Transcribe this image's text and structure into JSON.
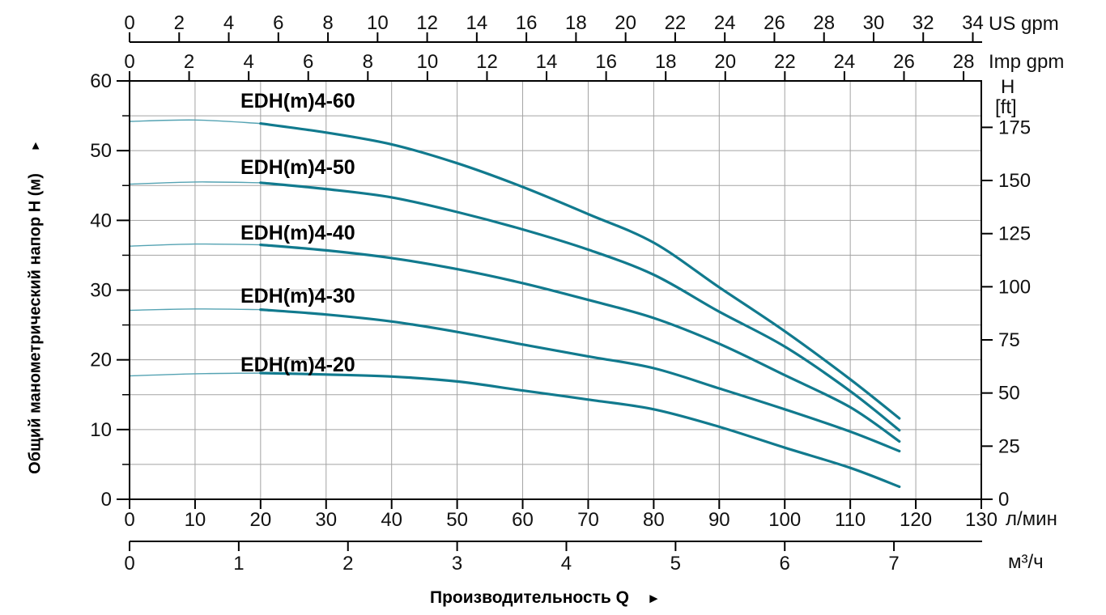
{
  "labels": {
    "us_gpm": "US gpm",
    "imp_gpm": "Imp gpm",
    "right_axis_line1": "H",
    "right_axis_line2": "[ft]",
    "flow_lmin": "л/мин",
    "flow_m3h": "м³/ч",
    "y_title": "Общий манометрический напор Н (м)",
    "y_arrow": "▲",
    "x_title": "Производительность Q",
    "x_arrow": "►"
  },
  "chart_data": {
    "type": "line",
    "title": "",
    "x_axes": [
      {
        "id": "us_gpm",
        "unit": "US gpm",
        "lmin_per_unit": 3.78541,
        "ticks": [
          0,
          2,
          4,
          6,
          8,
          10,
          12,
          14,
          16,
          18,
          20,
          22,
          24,
          26,
          28,
          30,
          32,
          34
        ]
      },
      {
        "id": "imp_gpm",
        "unit": "Imp gpm",
        "lmin_per_unit": 4.54609,
        "ticks": [
          0,
          2,
          4,
          6,
          8,
          10,
          12,
          14,
          16,
          18,
          20,
          22,
          24,
          26,
          28
        ]
      },
      {
        "id": "l_min",
        "unit": "л/мин",
        "lmin_per_unit": 1,
        "ticks": [
          0,
          10,
          20,
          30,
          40,
          50,
          60,
          70,
          80,
          90,
          100,
          110,
          120,
          130
        ]
      },
      {
        "id": "m3_h",
        "unit": "м³/ч",
        "lmin_per_unit": 16.6667,
        "ticks": [
          0,
          1,
          2,
          3,
          4,
          5,
          6,
          7
        ]
      }
    ],
    "y_axes": [
      {
        "id": "H_m",
        "unit": "м",
        "ticks": [
          0,
          10,
          20,
          30,
          40,
          50,
          60
        ],
        "minor_ticks": [
          5,
          15,
          25,
          35,
          45,
          55
        ],
        "range": [
          0,
          60
        ]
      },
      {
        "id": "H_ft",
        "unit": "ft",
        "ticks": [
          0,
          25,
          50,
          75,
          100,
          125,
          150,
          175
        ]
      }
    ],
    "grid": {
      "x_step_lmin": 10,
      "y_step_m": 5,
      "show": true
    },
    "colors": {
      "curve": "#117a8e",
      "curve_thin": "#55a3b3",
      "grid": "#a3a3a3",
      "axis": "#000000"
    },
    "series": [
      {
        "name": "EDH(m)4-60",
        "points_lmin_m": [
          [
            0,
            54.2
          ],
          [
            10,
            54.4
          ],
          [
            20,
            53.9
          ],
          [
            30,
            52.6
          ],
          [
            40,
            50.9
          ],
          [
            50,
            48.2
          ],
          [
            60,
            44.8
          ],
          [
            70,
            40.9
          ],
          [
            80,
            36.8
          ],
          [
            90,
            30.4
          ],
          [
            100,
            24.1
          ],
          [
            110,
            17.2
          ],
          [
            117.5,
            11.6
          ]
        ]
      },
      {
        "name": "EDH(m)4-50",
        "points_lmin_m": [
          [
            0,
            45.2
          ],
          [
            10,
            45.5
          ],
          [
            20,
            45.4
          ],
          [
            30,
            44.5
          ],
          [
            40,
            43.3
          ],
          [
            50,
            41.2
          ],
          [
            60,
            38.7
          ],
          [
            70,
            35.8
          ],
          [
            80,
            32.2
          ],
          [
            90,
            26.9
          ],
          [
            100,
            21.9
          ],
          [
            110,
            15.5
          ],
          [
            117.5,
            9.9
          ]
        ]
      },
      {
        "name": "EDH(m)4-40",
        "points_lmin_m": [
          [
            0,
            36.3
          ],
          [
            10,
            36.6
          ],
          [
            20,
            36.5
          ],
          [
            30,
            35.7
          ],
          [
            40,
            34.6
          ],
          [
            50,
            33.0
          ],
          [
            60,
            31.0
          ],
          [
            70,
            28.6
          ],
          [
            80,
            26.0
          ],
          [
            90,
            22.3
          ],
          [
            100,
            17.8
          ],
          [
            110,
            13.2
          ],
          [
            117.5,
            8.3
          ]
        ]
      },
      {
        "name": "EDH(m)4-30",
        "points_lmin_m": [
          [
            0,
            27.1
          ],
          [
            10,
            27.3
          ],
          [
            20,
            27.2
          ],
          [
            30,
            26.5
          ],
          [
            40,
            25.5
          ],
          [
            50,
            24.0
          ],
          [
            60,
            22.2
          ],
          [
            70,
            20.5
          ],
          [
            80,
            18.8
          ],
          [
            90,
            15.9
          ],
          [
            100,
            12.9
          ],
          [
            110,
            9.7
          ],
          [
            117.5,
            6.9
          ]
        ]
      },
      {
        "name": "EDH(m)4-20",
        "points_lmin_m": [
          [
            0,
            17.7
          ],
          [
            10,
            18.0
          ],
          [
            20,
            18.1
          ],
          [
            30,
            17.9
          ],
          [
            40,
            17.6
          ],
          [
            50,
            16.9
          ],
          [
            60,
            15.6
          ],
          [
            70,
            14.3
          ],
          [
            80,
            12.9
          ],
          [
            90,
            10.4
          ],
          [
            100,
            7.4
          ],
          [
            110,
            4.5
          ],
          [
            117.5,
            1.8
          ]
        ]
      }
    ]
  }
}
